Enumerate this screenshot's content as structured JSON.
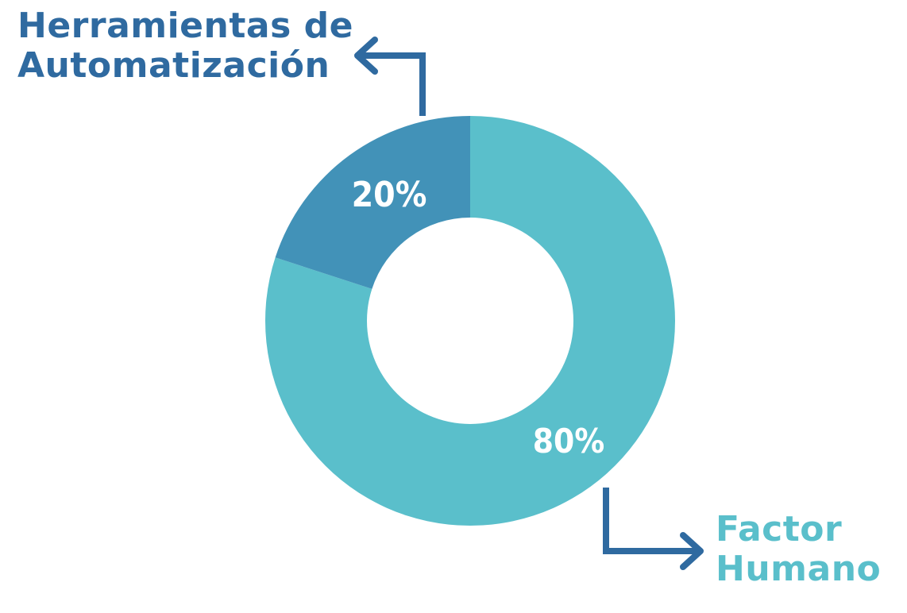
{
  "chart_data": {
    "type": "pie",
    "donut": true,
    "slices": [
      {
        "label_line1": "Herramientas de",
        "label_line2": "Automatización",
        "value": 20,
        "value_label": "20%",
        "color": "#4292b8",
        "label_color": "#2f6aa0"
      },
      {
        "label_line1": "Factor",
        "label_line2": "Humano",
        "value": 80,
        "value_label": "80%",
        "color": "#5abfcb",
        "label_color": "#5abfcb"
      }
    ],
    "arrow_color": "#2f6aa0",
    "legend": "none"
  }
}
